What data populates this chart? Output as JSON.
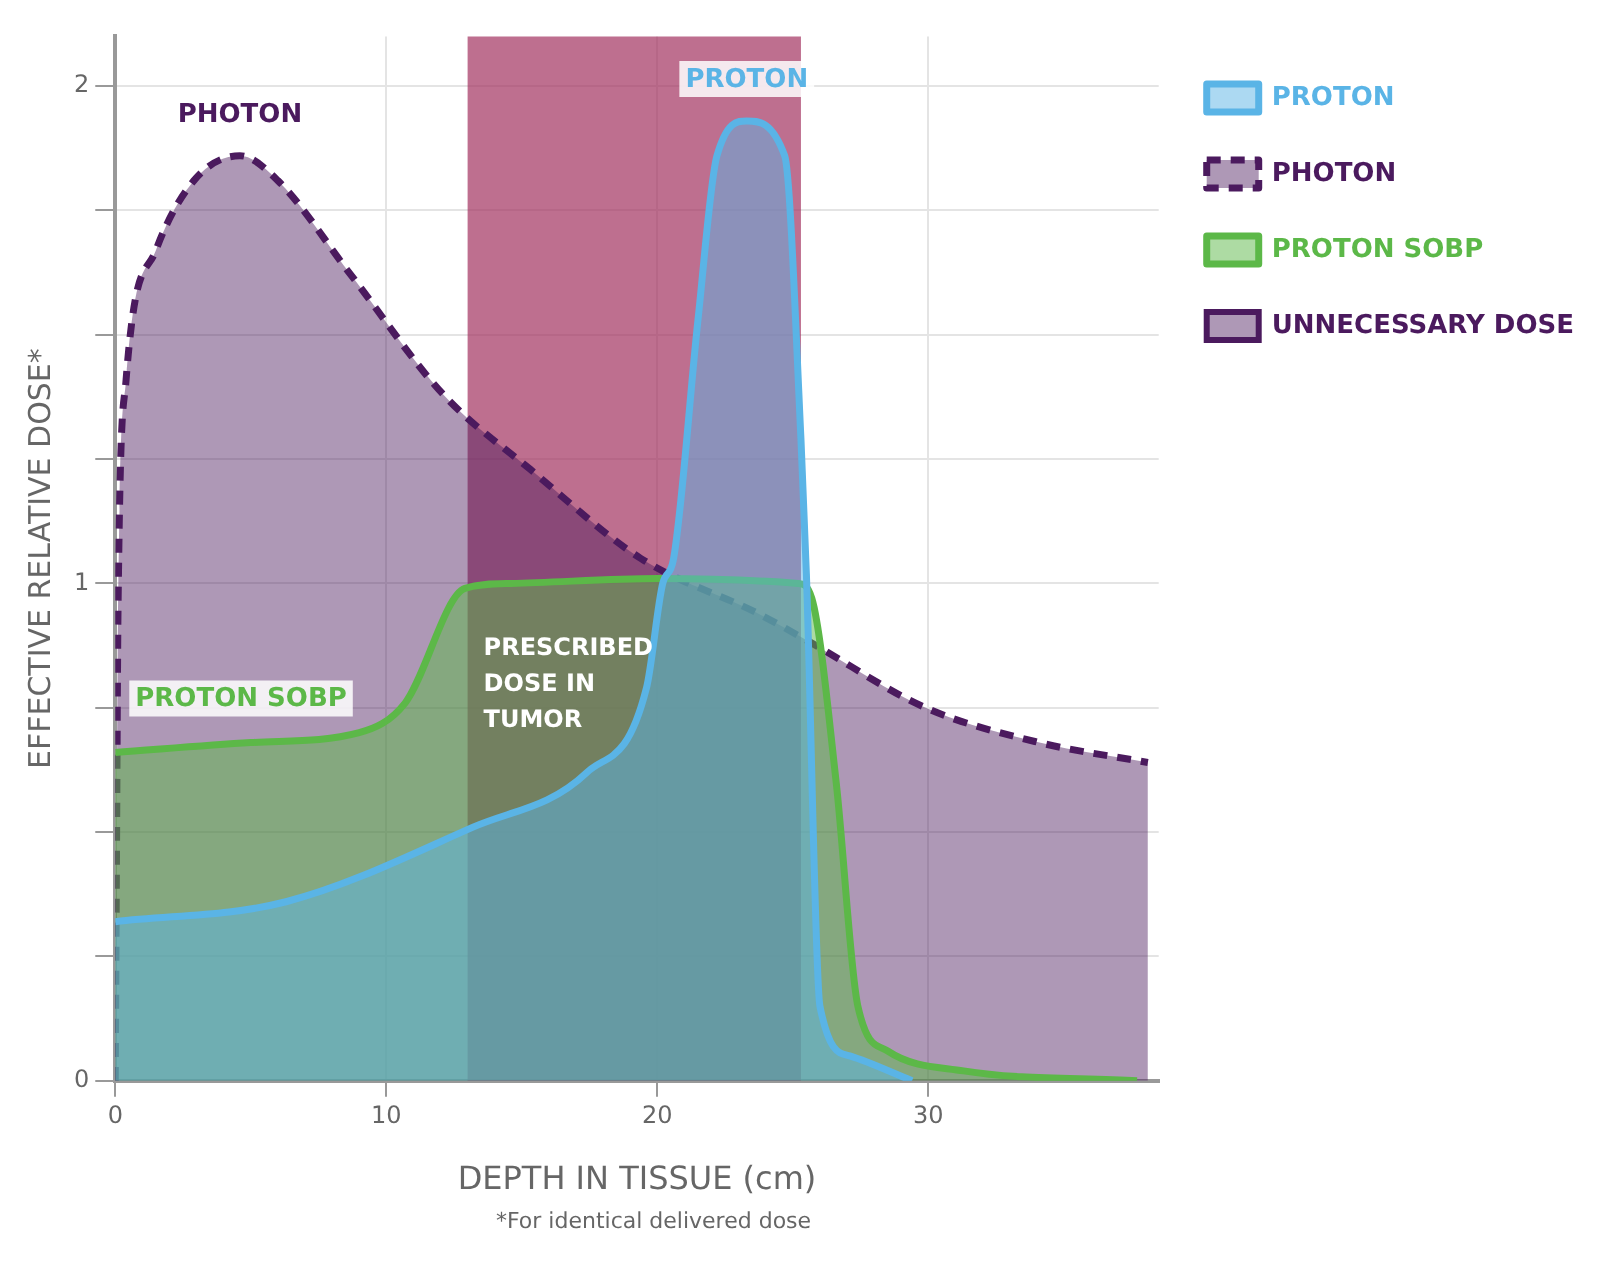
{
  "chart_data": {
    "type": "area",
    "xlabel": "DEPTH IN TISSUE (cm)",
    "ylabel": "EFFECTIVE RELATIVE DOSE*",
    "xlim": [
      0,
      38.5
    ],
    "xticks": [
      0,
      10,
      20,
      30
    ],
    "ylim": [
      0,
      2.1
    ],
    "yticks": [
      0,
      {
        "value": 0.25,
        "label": null
      },
      {
        "value": 0.5,
        "label": null
      },
      {
        "value": 0.75,
        "label": null
      },
      1,
      {
        "value": 1.25,
        "label": null
      },
      {
        "value": 1.5,
        "label": null
      },
      {
        "value": 1.75,
        "label": null
      },
      2
    ],
    "grid": true,
    "legend": "right",
    "series": [
      {
        "name": "PROTON",
        "color": "#5ab4e6",
        "x": [
          0,
          6.3,
          13.2,
          17.4,
          19.6,
          20.2,
          20.6,
          21.5,
          22.2,
          23.3,
          24.7,
          25.3,
          25.5,
          26.0,
          27.1,
          29.4
        ],
        "values": [
          0.32,
          0.36,
          0.51,
          0.62,
          0.79,
          1.0,
          1.05,
          1.53,
          1.86,
          1.93,
          1.86,
          1.29,
          1.02,
          0.15,
          0.05,
          0
        ]
      },
      {
        "name": "PHOTON",
        "line_style": "dashed",
        "color": "#4b1a5e",
        "x": [
          0,
          0.05,
          0.1,
          0.4,
          1.5,
          2.9,
          4.6,
          6,
          8.7,
          12.1,
          15.3,
          19.4,
          23.7,
          25.7,
          29.9,
          34.1,
          38.1
        ],
        "values": [
          0,
          0.5,
          0.94,
          1.41,
          1.67,
          1.81,
          1.86,
          1.81,
          1.62,
          1.38,
          1.23,
          1.05,
          0.94,
          0.88,
          0.75,
          0.68,
          0.64
        ]
      },
      {
        "name": "PROTON SOBP",
        "color": "#5cb848",
        "x": [
          0,
          5,
          9,
          10.7,
          12.9,
          14.6,
          20,
          25.2,
          25.7,
          26.6,
          27.4,
          28.5,
          31.3,
          37.7
        ],
        "values": [
          0.66,
          0.68,
          0.7,
          0.76,
          0.99,
          1.0,
          1.01,
          1.0,
          0.97,
          0.6,
          0.15,
          0.06,
          0.02,
          0.0
        ]
      }
    ],
    "bands": [
      {
        "axis": "x",
        "from": 13,
        "to": 25.3,
        "label": "PRESCRIBED DOSE IN TUMOR",
        "color": "#a3325f"
      }
    ],
    "annotations": [
      "UNNECESSARY DOSE",
      "*For identical delivered dose"
    ]
  }
}
